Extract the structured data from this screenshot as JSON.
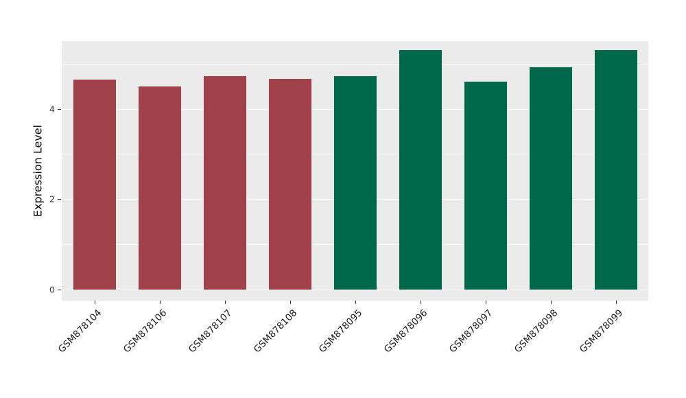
{
  "chart_data": {
    "type": "bar",
    "title": "",
    "xlabel": "",
    "ylabel": "Expression Level",
    "categories": [
      "GSM878104",
      "GSM878106",
      "GSM878107",
      "GSM878108",
      "GSM878095",
      "GSM878096",
      "GSM878097",
      "GSM878098",
      "GSM878099"
    ],
    "values": [
      4.65,
      4.5,
      4.72,
      4.67,
      4.72,
      5.3,
      4.6,
      4.92,
      5.3
    ],
    "groups": [
      "group1",
      "group1",
      "group1",
      "group1",
      "group2",
      "group2",
      "group2",
      "group2",
      "group2"
    ],
    "group_colors": {
      "group1": "#A04048",
      "group2": "#00684A"
    },
    "ylim": [
      -0.25,
      5.5
    ],
    "yticks_major": [
      0,
      2,
      4
    ],
    "yticks_minor": [
      1,
      3,
      5
    ],
    "grid": "on",
    "legend": "none",
    "panel_background": "#EBEBEB",
    "figure_background": "#FFFFFF"
  }
}
